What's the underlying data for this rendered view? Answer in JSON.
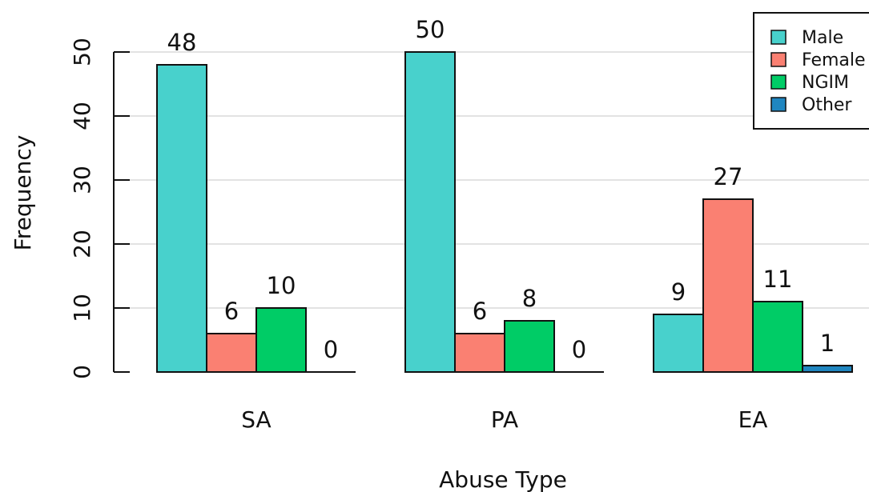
{
  "chart_data": {
    "type": "bar",
    "title": "",
    "xlabel": "Abuse Type",
    "ylabel": "Frequency",
    "ylim": [
      0,
      50
    ],
    "yticks": [
      0,
      10,
      20,
      30,
      40,
      50
    ],
    "grid": true,
    "legend_position": "top-right",
    "categories": [
      "SA",
      "PA",
      "EA"
    ],
    "series": [
      {
        "name": "Male",
        "color": "#48D1CC",
        "values": [
          48,
          50,
          9
        ],
        "value_labels": [
          "48",
          "50",
          "9"
        ]
      },
      {
        "name": "Female",
        "color": "#FA8072",
        "values": [
          6,
          6,
          27
        ],
        "value_labels": [
          "6",
          "6",
          "27"
        ]
      },
      {
        "name": "NGIM",
        "color": "#00CC66",
        "values": [
          10,
          8,
          11
        ],
        "value_labels": [
          "10",
          "8",
          "11"
        ]
      },
      {
        "name": "Other",
        "color": "#1F86C0",
        "values": [
          0,
          0,
          1
        ],
        "value_labels": [
          "0",
          "0",
          "1"
        ]
      }
    ]
  }
}
